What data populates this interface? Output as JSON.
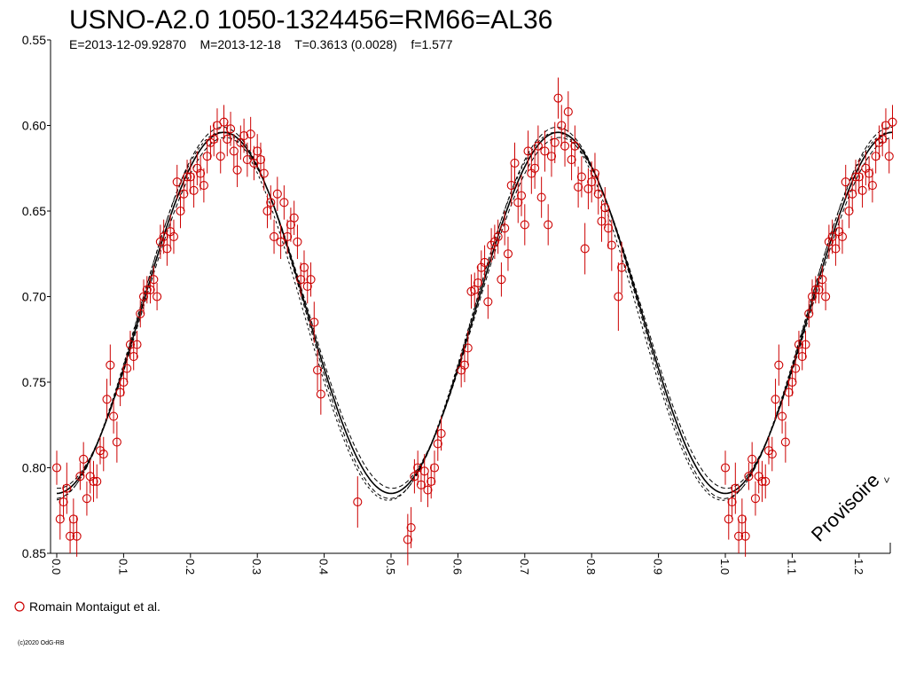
{
  "chart_data": {
    "type": "scatter",
    "title": "USNO-A2.0 1050-1324456=RM66=AL36",
    "subtitle": "E=2013-12-09.92870    M=2013-12-18    T=0.3613 (0.0028)    f=1.577",
    "xlabel": "",
    "ylabel": "",
    "xlim": [
      -0.01,
      1.25
    ],
    "ylim": [
      0.85,
      0.55
    ],
    "y_inverted": true,
    "grid": false,
    "y_ticks": [
      "0.55",
      "0.60",
      "0.65",
      "0.70",
      "0.75",
      "0.80",
      "0.85"
    ],
    "x_ticks": [
      "0.0",
      "0.1",
      "0.2",
      "0.3",
      "0.4",
      "0.5",
      "0.6",
      "0.7",
      "0.8",
      "0.9",
      "1.0",
      "1.1",
      "1.2"
    ],
    "legend": {
      "placement": "bottom-left",
      "entries": [
        {
          "name": "Romain Montaigut et al.",
          "color": "#cc0000",
          "marker": "open-circle"
        }
      ]
    },
    "model_curve": {
      "style": "solid plus dashed envelope",
      "color": "#000000",
      "min_mag": 0.604,
      "max_mag": 0.815,
      "period_in_phase": 0.5,
      "peak_phase": 0.25
    },
    "series": [
      {
        "name": "Romain Montaigut et al.",
        "color": "#cc0000",
        "marker": "open-circle",
        "points": [
          [
            0.0,
            0.8,
            0.01
          ],
          [
            0.005,
            0.83,
            0.012
          ],
          [
            0.01,
            0.82,
            0.01
          ],
          [
            0.015,
            0.812,
            0.015
          ],
          [
            0.02,
            0.84,
            0.01
          ],
          [
            0.025,
            0.83,
            0.012
          ],
          [
            0.03,
            0.84,
            0.012
          ],
          [
            0.035,
            0.805,
            0.008
          ],
          [
            0.04,
            0.795,
            0.01
          ],
          [
            0.045,
            0.818,
            0.01
          ],
          [
            0.05,
            0.805,
            0.01
          ],
          [
            0.055,
            0.808,
            0.012
          ],
          [
            0.06,
            0.808,
            0.01
          ],
          [
            0.065,
            0.79,
            0.008
          ],
          [
            0.07,
            0.792,
            0.01
          ],
          [
            0.075,
            0.76,
            0.012
          ],
          [
            0.08,
            0.74,
            0.012
          ],
          [
            0.085,
            0.77,
            0.01
          ],
          [
            0.09,
            0.785,
            0.012
          ],
          [
            0.095,
            0.756,
            0.008
          ],
          [
            0.1,
            0.75,
            0.008
          ],
          [
            0.105,
            0.742,
            0.008
          ],
          [
            0.11,
            0.728,
            0.008
          ],
          [
            0.115,
            0.735,
            0.008
          ],
          [
            0.12,
            0.728,
            0.008
          ],
          [
            0.125,
            0.71,
            0.008
          ],
          [
            0.13,
            0.7,
            0.01
          ],
          [
            0.135,
            0.696,
            0.008
          ],
          [
            0.14,
            0.696,
            0.008
          ],
          [
            0.145,
            0.69,
            0.008
          ],
          [
            0.15,
            0.7,
            0.008
          ],
          [
            0.155,
            0.668,
            0.01
          ],
          [
            0.16,
            0.665,
            0.01
          ],
          [
            0.165,
            0.672,
            0.01
          ],
          [
            0.17,
            0.662,
            0.01
          ],
          [
            0.175,
            0.665,
            0.01
          ],
          [
            0.18,
            0.633,
            0.01
          ],
          [
            0.185,
            0.65,
            0.01
          ],
          [
            0.19,
            0.64,
            0.01
          ],
          [
            0.195,
            0.63,
            0.01
          ],
          [
            0.2,
            0.63,
            0.01
          ],
          [
            0.205,
            0.638,
            0.01
          ],
          [
            0.21,
            0.625,
            0.01
          ],
          [
            0.215,
            0.628,
            0.01
          ],
          [
            0.22,
            0.635,
            0.01
          ],
          [
            0.225,
            0.618,
            0.01
          ],
          [
            0.23,
            0.61,
            0.01
          ],
          [
            0.235,
            0.608,
            0.01
          ],
          [
            0.24,
            0.6,
            0.01
          ],
          [
            0.245,
            0.618,
            0.01
          ],
          [
            0.25,
            0.598,
            0.01
          ],
          [
            0.255,
            0.608,
            0.01
          ],
          [
            0.26,
            0.602,
            0.01
          ],
          [
            0.265,
            0.615,
            0.01
          ],
          [
            0.27,
            0.626,
            0.01
          ],
          [
            0.275,
            0.61,
            0.01
          ],
          [
            0.28,
            0.606,
            0.01
          ],
          [
            0.285,
            0.62,
            0.01
          ],
          [
            0.29,
            0.605,
            0.01
          ],
          [
            0.295,
            0.622,
            0.01
          ],
          [
            0.3,
            0.615,
            0.01
          ],
          [
            0.305,
            0.62,
            0.01
          ],
          [
            0.31,
            0.628,
            0.01
          ],
          [
            0.315,
            0.65,
            0.01
          ],
          [
            0.32,
            0.645,
            0.01
          ],
          [
            0.325,
            0.665,
            0.01
          ],
          [
            0.33,
            0.64,
            0.01
          ],
          [
            0.335,
            0.668,
            0.01
          ],
          [
            0.34,
            0.645,
            0.01
          ],
          [
            0.345,
            0.665,
            0.01
          ],
          [
            0.35,
            0.658,
            0.01
          ],
          [
            0.355,
            0.654,
            0.01
          ],
          [
            0.36,
            0.668,
            0.01
          ],
          [
            0.365,
            0.69,
            0.01
          ],
          [
            0.37,
            0.683,
            0.01
          ],
          [
            0.375,
            0.694,
            0.01
          ],
          [
            0.38,
            0.69,
            0.01
          ],
          [
            0.385,
            0.715,
            0.012
          ],
          [
            0.39,
            0.743,
            0.012
          ],
          [
            0.395,
            0.757,
            0.012
          ],
          [
            0.45,
            0.82,
            0.015
          ],
          [
            0.525,
            0.842,
            0.015
          ],
          [
            0.53,
            0.835,
            0.012
          ],
          [
            0.535,
            0.805,
            0.01
          ],
          [
            0.54,
            0.8,
            0.01
          ],
          [
            0.545,
            0.81,
            0.01
          ],
          [
            0.55,
            0.802,
            0.01
          ],
          [
            0.555,
            0.813,
            0.01
          ],
          [
            0.56,
            0.808,
            0.01
          ],
          [
            0.565,
            0.8,
            0.01
          ],
          [
            0.57,
            0.786,
            0.01
          ],
          [
            0.575,
            0.78,
            0.01
          ],
          [
            0.605,
            0.743,
            0.01
          ],
          [
            0.61,
            0.74,
            0.01
          ],
          [
            0.615,
            0.73,
            0.01
          ],
          [
            0.62,
            0.697,
            0.01
          ],
          [
            0.625,
            0.696,
            0.01
          ],
          [
            0.63,
            0.692,
            0.01
          ],
          [
            0.635,
            0.683,
            0.01
          ],
          [
            0.64,
            0.68,
            0.01
          ],
          [
            0.645,
            0.703,
            0.01
          ],
          [
            0.65,
            0.67,
            0.01
          ],
          [
            0.655,
            0.668,
            0.01
          ],
          [
            0.66,
            0.665,
            0.01
          ],
          [
            0.665,
            0.69,
            0.01
          ],
          [
            0.67,
            0.66,
            0.01
          ],
          [
            0.675,
            0.675,
            0.01
          ],
          [
            0.68,
            0.635,
            0.012
          ],
          [
            0.685,
            0.622,
            0.012
          ],
          [
            0.69,
            0.645,
            0.012
          ],
          [
            0.695,
            0.641,
            0.012
          ],
          [
            0.7,
            0.658,
            0.012
          ],
          [
            0.705,
            0.615,
            0.012
          ],
          [
            0.71,
            0.628,
            0.012
          ],
          [
            0.715,
            0.625,
            0.012
          ],
          [
            0.72,
            0.612,
            0.012
          ],
          [
            0.725,
            0.642,
            0.012
          ],
          [
            0.73,
            0.615,
            0.012
          ],
          [
            0.735,
            0.658,
            0.012
          ],
          [
            0.74,
            0.618,
            0.012
          ],
          [
            0.745,
            0.61,
            0.012
          ],
          [
            0.75,
            0.584,
            0.012
          ],
          [
            0.755,
            0.6,
            0.012
          ],
          [
            0.76,
            0.612,
            0.012
          ],
          [
            0.765,
            0.592,
            0.012
          ],
          [
            0.77,
            0.62,
            0.012
          ],
          [
            0.775,
            0.612,
            0.012
          ],
          [
            0.78,
            0.636,
            0.012
          ],
          [
            0.785,
            0.63,
            0.012
          ],
          [
            0.79,
            0.672,
            0.015
          ],
          [
            0.795,
            0.637,
            0.012
          ],
          [
            0.8,
            0.633,
            0.012
          ],
          [
            0.805,
            0.628,
            0.012
          ],
          [
            0.81,
            0.64,
            0.012
          ],
          [
            0.815,
            0.656,
            0.012
          ],
          [
            0.82,
            0.648,
            0.012
          ],
          [
            0.825,
            0.66,
            0.012
          ],
          [
            0.83,
            0.67,
            0.015
          ],
          [
            0.84,
            0.7,
            0.02
          ],
          [
            0.845,
            0.683,
            0.015
          ]
        ]
      }
    ]
  },
  "annotations": {
    "stamp_text": "Provisoire",
    "credit_text": "(c)2020 OdG-RB"
  }
}
